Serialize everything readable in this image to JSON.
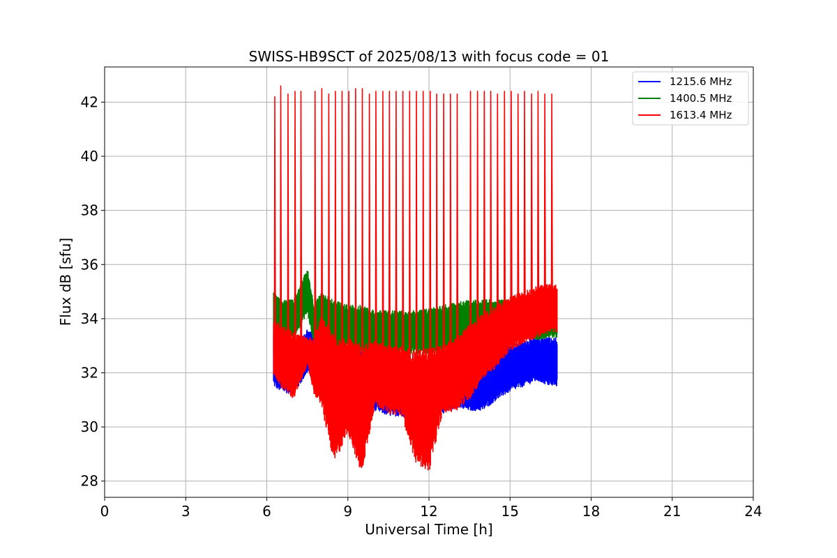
{
  "chart_data": {
    "type": "line",
    "title": "SWISS-HB9SCT of 2025/08/13 with focus code = 01",
    "xlabel": "Universal Time [h]",
    "ylabel": "Flux dB [sfu]",
    "xlim": [
      0,
      24
    ],
    "ylim": [
      27.4,
      43.3
    ],
    "xticks": [
      "0",
      "3",
      "6",
      "9",
      "12",
      "15",
      "18",
      "21",
      "24"
    ],
    "xtick_values": [
      0,
      3,
      6,
      9,
      12,
      15,
      18,
      21,
      24
    ],
    "yticks": [
      "28",
      "30",
      "32",
      "34",
      "36",
      "38",
      "40",
      "42"
    ],
    "ytick_values": [
      28,
      30,
      32,
      34,
      36,
      38,
      40,
      42
    ],
    "grid": true,
    "legend_position": "top-right",
    "series": [
      {
        "name": "1215.6 MHz",
        "color": "#0000ff",
        "x": [
          6.25,
          6.5,
          7.0,
          7.5,
          7.75,
          8.0,
          8.5,
          9.0,
          9.5,
          10.0,
          10.5,
          11.0,
          11.5,
          12.0,
          12.5,
          13.0,
          13.5,
          14.0,
          14.5,
          15.0,
          15.5,
          16.0,
          16.5,
          16.75
        ],
        "min": [
          31.5,
          31.3,
          31.2,
          32.0,
          31.9,
          31.5,
          31.0,
          30.8,
          30.7,
          30.6,
          30.4,
          30.4,
          30.3,
          30.7,
          30.5,
          30.7,
          30.6,
          30.6,
          31.0,
          31.3,
          31.5,
          31.7,
          31.5,
          31.5
        ],
        "max": [
          33.5,
          33.3,
          33.0,
          33.6,
          33.5,
          33.0,
          33.0,
          33.0,
          32.8,
          32.5,
          32.5,
          32.4,
          32.3,
          32.5,
          32.3,
          32.3,
          32.3,
          32.5,
          32.8,
          33.0,
          33.2,
          33.3,
          33.3,
          33.3
        ]
      },
      {
        "name": "1400.5 MHz",
        "color": "#008000",
        "x": [
          6.25,
          6.5,
          7.0,
          7.5,
          7.75,
          8.0,
          8.5,
          9.0,
          9.5,
          10.0,
          10.5,
          11.0,
          11.5,
          12.0,
          12.5,
          13.0,
          13.5,
          14.0,
          14.5,
          15.0,
          15.5,
          16.0,
          16.5,
          16.75
        ],
        "min": [
          32.5,
          33.2,
          33.3,
          34.2,
          33.0,
          32.9,
          32.9,
          32.9,
          32.8,
          32.7,
          32.7,
          32.7,
          32.7,
          32.7,
          32.8,
          32.9,
          32.9,
          33.0,
          33.2,
          33.3,
          33.3,
          33.2,
          33.3,
          33.3
        ],
        "max": [
          35.0,
          34.7,
          34.7,
          35.9,
          34.5,
          35.0,
          34.7,
          34.5,
          34.5,
          34.3,
          34.3,
          34.3,
          34.3,
          34.4,
          34.5,
          34.6,
          34.7,
          34.7,
          34.7,
          34.7,
          34.8,
          34.8,
          34.9,
          34.9
        ]
      },
      {
        "name": "1613.4 MHz",
        "color": "#ff0000",
        "x": [
          6.25,
          6.5,
          7.0,
          7.5,
          7.75,
          8.0,
          8.5,
          9.0,
          9.5,
          10.0,
          10.5,
          11.0,
          11.5,
          12.0,
          12.5,
          13.0,
          13.5,
          14.0,
          14.5,
          15.0,
          15.5,
          16.0,
          16.5,
          16.75
        ],
        "min": [
          31.9,
          31.5,
          31.0,
          32.3,
          31.2,
          30.8,
          28.6,
          29.8,
          28.2,
          30.8,
          30.5,
          30.4,
          28.7,
          28.3,
          30.5,
          30.6,
          31.0,
          31.8,
          32.2,
          32.8,
          33.1,
          33.3,
          33.5,
          33.5
        ],
        "max": [
          34.0,
          33.8,
          33.5,
          33.3,
          33.3,
          34.1,
          33.4,
          33.3,
          33.1,
          33.2,
          33.0,
          33.0,
          32.8,
          33.0,
          33.0,
          33.3,
          33.8,
          34.2,
          34.5,
          34.8,
          35.0,
          35.2,
          35.3,
          35.3
        ],
        "spikes_x": [
          6.28,
          6.5,
          6.77,
          7.03,
          7.25,
          7.77,
          8.02,
          8.28,
          8.52,
          8.77,
          9.02,
          9.27,
          9.52,
          9.78,
          10.02,
          10.28,
          10.52,
          10.77,
          11.02,
          11.27,
          11.52,
          11.77,
          12.03,
          12.27,
          12.53,
          12.78,
          13.03,
          13.52,
          13.78,
          14.03,
          14.27,
          14.52,
          14.78,
          15.03,
          15.28,
          15.52,
          15.78,
          16.02,
          16.27,
          16.53
        ],
        "spikes_y": [
          42.2,
          42.6,
          42.3,
          42.4,
          42.4,
          42.4,
          42.5,
          42.3,
          42.4,
          42.4,
          42.4,
          42.5,
          42.5,
          42.3,
          42.4,
          42.4,
          42.4,
          42.4,
          42.4,
          42.4,
          42.4,
          42.4,
          42.4,
          42.3,
          42.3,
          42.3,
          42.3,
          42.4,
          42.4,
          42.4,
          42.4,
          42.3,
          42.4,
          42.4,
          42.3,
          42.4,
          42.3,
          42.4,
          42.3,
          42.3
        ]
      }
    ]
  }
}
